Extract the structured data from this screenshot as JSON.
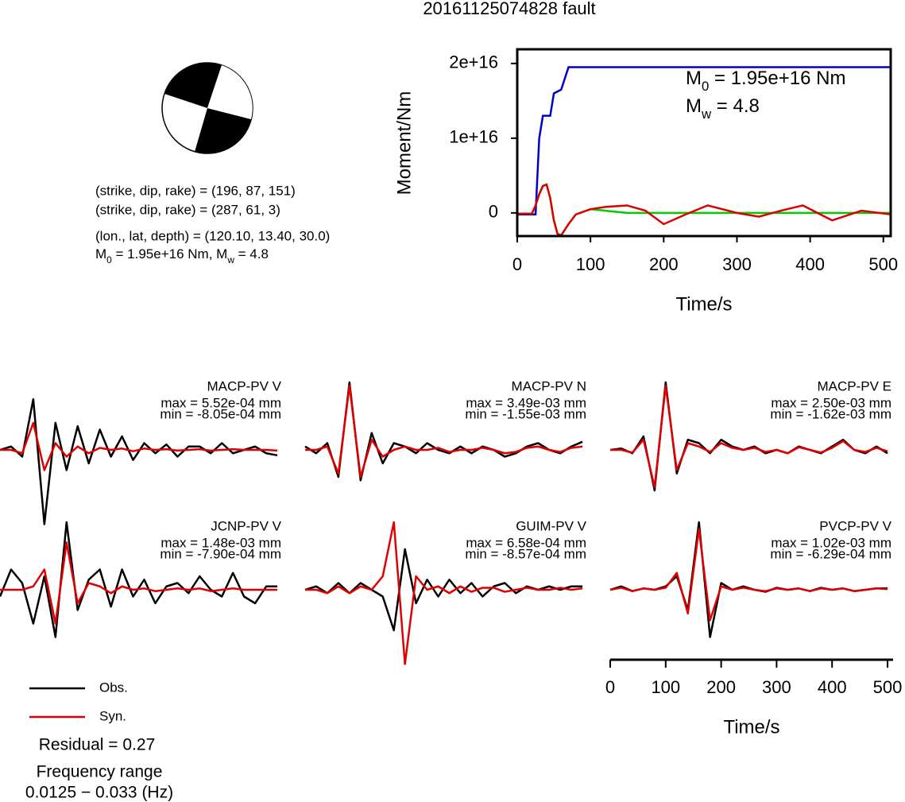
{
  "title": "20161125074828 fault",
  "mechanism": {
    "lines": [
      "(strike, dip, rake) = (196, 87, 151)",
      "(strike, dip, rake) = (287, 61, 3)",
      "(lon., lat, depth) = (120.10, 13.40, 30.0)"
    ],
    "moment_line": [
      "M",
      "0",
      " = 1.95e+16 Nm, M",
      "w",
      " = 4.8"
    ]
  },
  "summary": {
    "residual": "Residual = 0.27",
    "frequency_title": "Frequency range",
    "frequency": "0.0125 − 0.033 (Hz)"
  },
  "chart_data": [
    {
      "type": "line",
      "xlabel": "Time/s",
      "ylabel": "Moment/Nm",
      "xlim": [
        0,
        510
      ],
      "ylim": [
        -3100000000000000.0,
        2.19e+16
      ],
      "xticks": [
        0,
        100,
        200,
        300,
        400,
        500
      ],
      "yticks": [
        0,
        {
          "value": 1e+16,
          "label": "1e+16"
        },
        {
          "value": 2e+16,
          "label": "2e+16"
        }
      ],
      "annotations": [
        [
          "M",
          "0",
          " = 1.95e+16 Nm"
        ],
        [
          "M",
          "w",
          " = 4.8"
        ]
      ],
      "series": [
        {
          "color": "#0000cc",
          "x": [
            0,
            25,
            30,
            35,
            45,
            50,
            60,
            65,
            70,
            510
          ],
          "values": [
            -200000000000000.0,
            -200000000000000.0,
            1e+16,
            1.3e+16,
            1.3e+16,
            1.6e+16,
            1.65e+16,
            1.8e+16,
            1.95e+16,
            1.95e+16
          ]
        },
        {
          "color": "#00cc00",
          "x": [
            0,
            20,
            25,
            30,
            35,
            40,
            45,
            50,
            55,
            60,
            70,
            80,
            100,
            120,
            150,
            510
          ],
          "values": [
            -100000000000000.0,
            -100000000000000.0,
            1000000000000000.0,
            2500000000000000.0,
            3600000000000000.0,
            3800000000000000.0,
            2000000000000000.0,
            -1000000000000000.0,
            -2800000000000000.0,
            -3000000000000000.0,
            -1500000000000000.0,
            -200000000000000.0,
            500000000000000.0,
            300000000000000.0,
            0,
            0
          ]
        },
        {
          "color": "#dd0000",
          "x": [
            0,
            20,
            25,
            30,
            35,
            40,
            45,
            50,
            55,
            60,
            70,
            80,
            100,
            120,
            150,
            175,
            200,
            230,
            260,
            300,
            330,
            360,
            390,
            430,
            470,
            510
          ],
          "values": [
            -100000000000000.0,
            -100000000000000.0,
            1000000000000000.0,
            2500000000000000.0,
            3600000000000000.0,
            3800000000000000.0,
            2000000000000000.0,
            -1000000000000000.0,
            -2800000000000000.0,
            -3000000000000000.0,
            -1500000000000000.0,
            -200000000000000.0,
            500000000000000.0,
            800000000000000.0,
            1000000000000000.0,
            300000000000000.0,
            -1500000000000000.0,
            -200000000000000.0,
            1000000000000000.0,
            0,
            -500000000000000.0,
            300000000000000.0,
            1000000000000000.0,
            -1000000000000000.0,
            300000000000000.0,
            -200000000000000.0
          ]
        }
      ]
    },
    {
      "type": "waveforms",
      "xlabel": "Time/s",
      "xlim": [
        0,
        510
      ],
      "xticks": [
        0,
        100,
        200,
        300,
        400,
        500
      ],
      "ylim": [
        -1,
        1
      ],
      "legend": [
        {
          "name": "Obs.",
          "color": "#000000"
        },
        {
          "name": "Syn.",
          "color": "#e00000"
        }
      ],
      "x": [
        0,
        20,
        40,
        60,
        80,
        100,
        120,
        140,
        160,
        180,
        200,
        220,
        240,
        260,
        280,
        300,
        320,
        340,
        360,
        380,
        400,
        420,
        440,
        460,
        480,
        500
      ],
      "panels": [
        {
          "station": "MACP-PV V",
          "max": "max = 5.52e-04 mm",
          "min": "min = -8.05e-04 mm",
          "obs": [
            0,
            0.05,
            -0.1,
            0.75,
            -1.1,
            0.4,
            -0.3,
            0.35,
            -0.2,
            0.3,
            -0.1,
            0.2,
            -0.15,
            0.1,
            -0.05,
            0.08,
            -0.1,
            0.05,
            0.05,
            -0.05,
            0.1,
            -0.05,
            0,
            0.05,
            -0.05,
            -0.08
          ],
          "syn": [
            0,
            0,
            -0.05,
            0.4,
            -0.3,
            0.1,
            -0.1,
            0.05,
            -0.05,
            0.03,
            0,
            0.02,
            -0.02,
            0.02,
            0,
            0.01,
            -0.01,
            0,
            0.01,
            -0.01,
            0,
            0.01,
            0,
            0,
            0,
            -0.01
          ]
        },
        {
          "station": "MACP-PV N",
          "max": "max = 3.49e-03 mm",
          "min": "min = -1.55e-03 mm",
          "obs": [
            0.05,
            -0.05,
            0.1,
            -0.4,
            1.0,
            -0.45,
            0.25,
            -0.2,
            0.1,
            0.05,
            -0.05,
            0.1,
            0,
            -0.05,
            0.05,
            -0.05,
            0.05,
            0,
            -0.1,
            -0.05,
            0.05,
            0.1,
            0,
            -0.05,
            0.05,
            0.12
          ],
          "syn": [
            0,
            0,
            0.05,
            -0.35,
            0.95,
            -0.4,
            0.15,
            -0.1,
            0,
            0.05,
            0,
            0,
            0.03,
            -0.03,
            0,
            0,
            0.03,
            0,
            -0.05,
            -0.03,
            0.03,
            0.05,
            0,
            -0.03,
            0.03,
            0.05
          ]
        },
        {
          "station": "MACP-PV E",
          "max": "max = 2.50e-03 mm",
          "min": "min = -1.62e-03 mm",
          "obs": [
            0,
            0.02,
            -0.05,
            0.2,
            -0.6,
            1.0,
            -0.35,
            0.15,
            0.1,
            -0.05,
            0.15,
            0.05,
            0,
            0.05,
            -0.05,
            0,
            -0.05,
            0.05,
            0,
            -0.05,
            0.05,
            0.15,
            0,
            -0.05,
            0.05,
            -0.05
          ],
          "syn": [
            0,
            0,
            -0.04,
            0.15,
            -0.55,
            0.95,
            -0.3,
            0.1,
            0.05,
            -0.03,
            0.1,
            0.03,
            0,
            0.03,
            -0.03,
            0,
            -0.05,
            0.04,
            0,
            -0.04,
            0.03,
            0.13,
            0,
            -0.03,
            0.03,
            -0.02
          ]
        },
        {
          "station": "JCNP-PV V",
          "max": "max = 1.48e-03 mm",
          "min": "min = -7.90e-04 mm",
          "obs": [
            -0.1,
            0.3,
            0.1,
            -0.5,
            0.2,
            -0.7,
            1.0,
            -0.3,
            0.15,
            0.3,
            -0.25,
            0.3,
            -0.1,
            0.15,
            -0.2,
            0.05,
            0.1,
            -0.05,
            0.2,
            0,
            -0.1,
            0.25,
            -0.1,
            -0.2,
            0.05,
            0.05
          ],
          "syn": [
            0,
            0,
            0,
            0.05,
            0.3,
            -0.5,
            0.7,
            -0.2,
            0.1,
            0.05,
            -0.05,
            0.05,
            0,
            0.02,
            -0.02,
            0,
            0.02,
            0,
            0.02,
            -0.02,
            0,
            0.02,
            0,
            0,
            0,
            0
          ]
        },
        {
          "station": "GUIM-PV V",
          "max": "max = 6.58e-04 mm",
          "min": "min = -8.57e-04 mm",
          "obs": [
            0,
            0.05,
            -0.05,
            0.1,
            -0.05,
            0.1,
            0,
            -0.1,
            -0.6,
            0.6,
            -0.2,
            0.15,
            -0.1,
            0.15,
            -0.05,
            0.1,
            -0.1,
            0.05,
            0.1,
            -0.05,
            0.05,
            0,
            0.05,
            0,
            0.05,
            0.05
          ],
          "syn": [
            0,
            0,
            -0.05,
            0.05,
            -0.05,
            0.05,
            0,
            0.2,
            1.0,
            -1.1,
            0.2,
            0,
            0.05,
            -0.05,
            0.05,
            -0.03,
            0.03,
            0.03,
            -0.03,
            0,
            0.03,
            0,
            0,
            0.03,
            0,
            0.02
          ]
        },
        {
          "station": "PVCP-PV V",
          "max": "max = 1.02e-03 mm",
          "min": "min = -6.29e-04 mm",
          "obs": [
            0,
            0.05,
            -0.02,
            0.02,
            0,
            0.05,
            0.2,
            -0.3,
            1.0,
            -0.7,
            0.1,
            0,
            0.05,
            0,
            -0.03,
            0.03,
            0,
            0.02,
            -0.02,
            0.03,
            0,
            0.02,
            -0.02,
            0,
            0.02,
            0.02
          ],
          "syn": [
            0,
            0.03,
            -0.02,
            0.02,
            0,
            0.03,
            0.25,
            -0.35,
            0.9,
            -0.45,
            0.05,
            0,
            0.03,
            0,
            -0.02,
            0.02,
            0,
            0.02,
            -0.02,
            0.02,
            0,
            0.02,
            -0.02,
            0,
            0.02,
            0.01
          ]
        }
      ]
    }
  ]
}
